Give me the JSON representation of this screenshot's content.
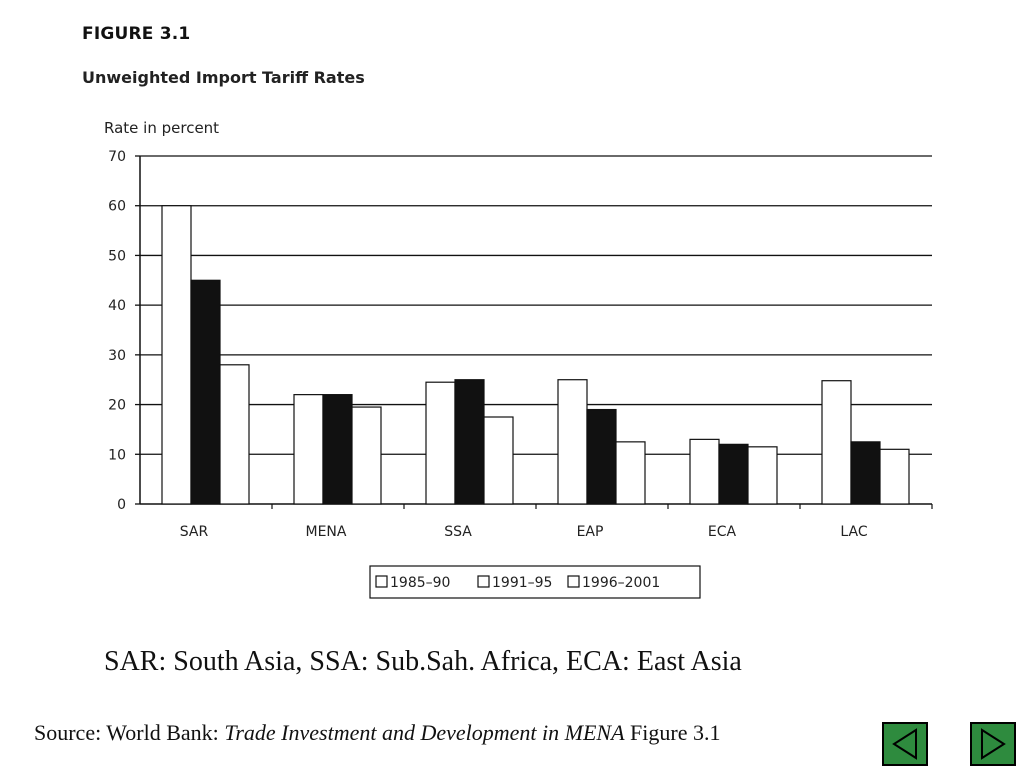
{
  "figure": {
    "label": "FIGURE 3.1",
    "title": "Unweighted Import Tariff Rates"
  },
  "caption": "SAR: South Asia, SSA: Sub.Sah. Africa, ECA: East Asia",
  "source": {
    "prefix": "Source: World Bank: ",
    "italic": "Trade Investment and Development in MENA",
    "suffix": " Figure 3.1"
  },
  "nav": {
    "prev_icon": "triangle-left-icon",
    "next_icon": "triangle-right-icon",
    "button_color": "#2e8b3e"
  },
  "chart_data": {
    "type": "bar",
    "ylabel": "Rate in percent",
    "xlabel": "",
    "ylim": [
      0,
      70
    ],
    "yticks": [
      0,
      10,
      20,
      30,
      40,
      50,
      60,
      70
    ],
    "grid": true,
    "legend_position": "bottom-center",
    "categories": [
      "SAR",
      "MENA",
      "SSA",
      "EAP",
      "ECA",
      "LAC"
    ],
    "series": [
      {
        "name": "1985–90",
        "color": "#ffffff",
        "values": [
          60,
          22,
          24.5,
          25,
          13,
          24.8
        ]
      },
      {
        "name": "1991–95",
        "color": "#111111",
        "values": [
          45,
          22,
          25,
          19,
          12,
          12.5
        ]
      },
      {
        "name": "1996–2001",
        "color": "#ffffff",
        "values": [
          28,
          19.5,
          17.5,
          12.5,
          11.5,
          11
        ]
      }
    ]
  }
}
